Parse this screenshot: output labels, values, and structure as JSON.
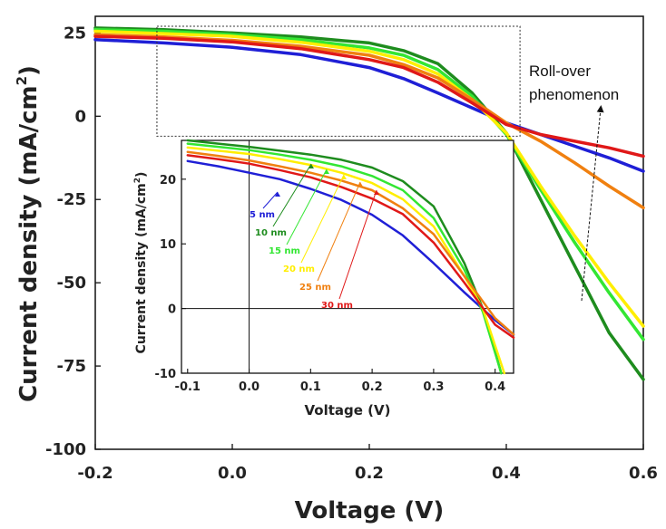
{
  "chart_data": [
    {
      "type": "line",
      "xlabel": "Voltage (V)",
      "ylabel": "Current density (mA/cm²)",
      "ylabel_base": "Current density (mA/cm",
      "ylabel_sup": "2",
      "ylabel_close": ")",
      "xlim": [
        -0.2,
        0.6
      ],
      "ylim": [
        -100,
        30
      ],
      "xticks": [
        "-0.2",
        "0.0",
        "0.2",
        "0.4",
        "0.6"
      ],
      "yticks": [
        "25",
        "0",
        "-25",
        "-50",
        "-75",
        "-100"
      ],
      "annotation_line1": "Roll-over",
      "annotation_line2": "phenomenon",
      "series": [
        {
          "name": "5 nm",
          "color": "#1f1fd6",
          "x": [
            -0.2,
            -0.1,
            0.0,
            0.1,
            0.2,
            0.25,
            0.3,
            0.35,
            0.4,
            0.45,
            0.5,
            0.55,
            0.6
          ],
          "y": [
            23,
            22,
            20.7,
            18.5,
            14.6,
            11.3,
            7,
            2.5,
            -2,
            -5.5,
            -9,
            -12.5,
            -16.5
          ]
        },
        {
          "name": "10 nm",
          "color": "#1e8c1e",
          "x": [
            -0.2,
            -0.1,
            0.0,
            0.1,
            0.2,
            0.25,
            0.3,
            0.35,
            0.4,
            0.45,
            0.5,
            0.55,
            0.6
          ],
          "y": [
            26.5,
            26,
            25,
            23.8,
            22,
            19.7,
            15.8,
            7,
            -5,
            -25,
            -45,
            -65,
            -79
          ]
        },
        {
          "name": "15 nm",
          "color": "#33e633",
          "x": [
            -0.2,
            -0.1,
            0.0,
            0.1,
            0.2,
            0.25,
            0.3,
            0.35,
            0.4,
            0.45,
            0.5,
            0.55,
            0.6
          ],
          "y": [
            26,
            25.5,
            24.5,
            23,
            20.5,
            18.3,
            14,
            6,
            -5.5,
            -22,
            -38,
            -53,
            -67
          ]
        },
        {
          "name": "20 nm",
          "color": "#ffee00",
          "x": [
            -0.2,
            -0.1,
            0.0,
            0.1,
            0.2,
            0.25,
            0.3,
            0.35,
            0.4,
            0.45,
            0.5,
            0.55,
            0.6
          ],
          "y": [
            25.5,
            24.8,
            24,
            22.2,
            19.5,
            17,
            12.7,
            5,
            -5,
            -21,
            -36,
            -50,
            -63
          ]
        },
        {
          "name": "25 nm",
          "color": "#f08010",
          "x": [
            -0.2,
            -0.1,
            0.0,
            0.1,
            0.2,
            0.25,
            0.3,
            0.35,
            0.4,
            0.45,
            0.5,
            0.55,
            0.6
          ],
          "y": [
            24.5,
            23.8,
            22.8,
            21,
            18.3,
            15.5,
            11.5,
            5,
            -2,
            -7.5,
            -14,
            -21,
            -27.5
          ]
        },
        {
          "name": "30 nm",
          "color": "#e01818",
          "x": [
            -0.2,
            -0.1,
            0.0,
            0.1,
            0.2,
            0.25,
            0.3,
            0.35,
            0.4,
            0.45,
            0.5,
            0.55,
            0.6
          ],
          "y": [
            24,
            23.4,
            22.3,
            20.3,
            17,
            14.6,
            10.2,
            4,
            -2.5,
            -5.5,
            -7.5,
            -9.5,
            -12
          ]
        }
      ]
    },
    {
      "type": "line",
      "xlabel": "Voltage (V)",
      "ylabel": "Current density (mA/cm²)",
      "ylabel_base": "Current density (mA/cm",
      "ylabel_sup": "2",
      "ylabel_close": ")",
      "xlim": [
        -0.11,
        0.43
      ],
      "ylim": [
        -10,
        26
      ],
      "xticks": [
        "-0.1",
        "0.0",
        "0.1",
        "0.2",
        "0.3",
        "0.4"
      ],
      "yticks": [
        "20",
        "10",
        "0",
        "-10"
      ],
      "series": [
        {
          "name": "5 nm",
          "color": "#1f1fd6",
          "x": [
            -0.1,
            -0.05,
            0.0,
            0.05,
            0.1,
            0.15,
            0.2,
            0.25,
            0.3,
            0.35,
            0.4,
            0.43
          ],
          "y": [
            22.8,
            22,
            21,
            20,
            18.5,
            16.8,
            14.5,
            11.3,
            7,
            2.5,
            -1.8,
            -4
          ]
        },
        {
          "name": "10 nm",
          "color": "#1e8c1e",
          "x": [
            -0.1,
            -0.05,
            0.0,
            0.05,
            0.1,
            0.15,
            0.2,
            0.25,
            0.3,
            0.35,
            0.38,
            0.41
          ],
          "y": [
            26,
            25.5,
            25,
            24.4,
            23.8,
            23,
            21.8,
            19.7,
            15.8,
            7,
            0,
            -10
          ]
        },
        {
          "name": "15 nm",
          "color": "#33e633",
          "x": [
            -0.1,
            -0.05,
            0.0,
            0.05,
            0.1,
            0.15,
            0.2,
            0.25,
            0.3,
            0.35,
            0.38,
            0.41
          ],
          "y": [
            25.5,
            25,
            24.5,
            23.8,
            23,
            22,
            20.5,
            18.3,
            14,
            6,
            -0.5,
            -10
          ]
        },
        {
          "name": "20 nm",
          "color": "#ffee00",
          "x": [
            -0.1,
            -0.05,
            0.0,
            0.05,
            0.1,
            0.15,
            0.2,
            0.25,
            0.3,
            0.35,
            0.38,
            0.415
          ],
          "y": [
            24.9,
            24.4,
            23.9,
            23.1,
            22.2,
            21,
            19.4,
            16.9,
            12.7,
            5,
            0,
            -10
          ]
        },
        {
          "name": "25 nm",
          "color": "#f08010",
          "x": [
            -0.1,
            -0.05,
            0.0,
            0.05,
            0.1,
            0.15,
            0.2,
            0.25,
            0.3,
            0.35,
            0.4,
            0.43
          ],
          "y": [
            24.2,
            23.6,
            22.9,
            22,
            21,
            19.8,
            18.3,
            15.5,
            11.5,
            5,
            -1.5,
            -4
          ]
        },
        {
          "name": "30 nm",
          "color": "#e01818",
          "x": [
            -0.1,
            -0.05,
            0.0,
            0.05,
            0.1,
            0.15,
            0.2,
            0.25,
            0.3,
            0.35,
            0.4,
            0.43
          ],
          "y": [
            23.7,
            23.1,
            22.4,
            21.4,
            20.3,
            18.8,
            17,
            14.6,
            10.2,
            4,
            -2.5,
            -4.5
          ]
        }
      ]
    }
  ]
}
